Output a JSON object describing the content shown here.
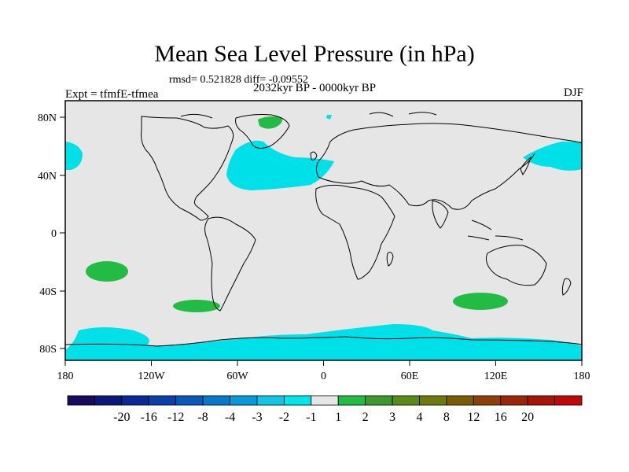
{
  "title": "Mean Sea Level Pressure (in hPa)",
  "stats_line": "rmsd= 0.521828 diff= -0.09552",
  "experiment": "Expt = tfmfE-tfmea",
  "period": "2032kyr BP - 0000kyr BP",
  "season": "DJF",
  "map": {
    "lat_ticks": [
      "80N",
      "40N",
      "0",
      "40S",
      "80S"
    ],
    "lon_ticks": [
      "180",
      "120W",
      "60W",
      "0",
      "60E",
      "120E",
      "180"
    ],
    "background_color": "#e6e6e6",
    "regions": [
      {
        "label": "-1",
        "place": "North Atlantic",
        "color": "#00e0e8"
      },
      {
        "label": "-1",
        "place": "North Pacific / Bering",
        "color": "#00e0e8"
      },
      {
        "label": "-1",
        "place": "Southern Ocean / Antarctica",
        "color": "#00e0e8"
      },
      {
        "label": "1",
        "place": "Greenland",
        "color": "#22bb44"
      },
      {
        "label": "1",
        "place": "South Pacific",
        "color": "#22bb44"
      },
      {
        "label": "1",
        "place": "South Indian Ocean",
        "color": "#22bb44"
      }
    ]
  },
  "colorbar": {
    "colors": [
      "#1a0a5e",
      "#0a1878",
      "#0c2a94",
      "#0a40a8",
      "#0a58b8",
      "#0878c8",
      "#0899d8",
      "#14c4e4",
      "#00e4ea",
      "#e6e6e6",
      "#22bb44",
      "#3c9a2c",
      "#5a8a1a",
      "#6e7a0e",
      "#7a5c08",
      "#8a4006",
      "#9a2808",
      "#a81408",
      "#bc0a0a"
    ],
    "labels": [
      "-20",
      "-16",
      "-12",
      "-8",
      "-4",
      "-3",
      "-2",
      "-1",
      "1",
      "2",
      "3",
      "4",
      "8",
      "12",
      "16",
      "20"
    ]
  }
}
